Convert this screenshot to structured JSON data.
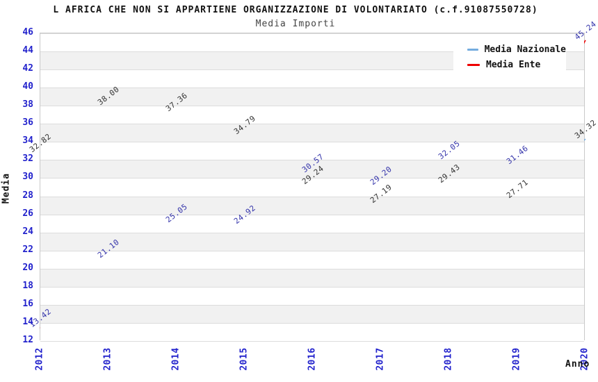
{
  "header": {
    "title": "L AFRICA CHE NON SI APPARTIENE ORGANIZZAZIONE DI VOLONTARIATO (c.f.91087550728)",
    "subtitle": "Media Importi"
  },
  "chart_data": {
    "type": "line",
    "title": "L AFRICA CHE NON SI APPARTIENE ORGANIZZAZIONE DI VOLONTARIATO (c.f.91087550728)",
    "subtitle": "Media Importi",
    "xlabel": "Anno",
    "ylabel": "Media",
    "categories": [
      "2012",
      "2013",
      "2014",
      "2015",
      "2016",
      "2017",
      "2018",
      "2019",
      "2020"
    ],
    "series": [
      {
        "name": "Media Nazionale",
        "color": "#74acdf",
        "label_color": "#333333",
        "values": [
          32.82,
          38.0,
          37.36,
          34.79,
          29.24,
          27.19,
          29.43,
          27.71,
          34.32
        ]
      },
      {
        "name": "Media Ente",
        "color": "#ee0000",
        "label_color": "#3333aa",
        "values": [
          13.42,
          21.1,
          25.05,
          24.92,
          30.57,
          29.2,
          32.05,
          31.46,
          45.24
        ]
      }
    ],
    "ylim": [
      12,
      46
    ],
    "y_ticks": [
      46,
      44,
      42,
      40,
      38,
      36,
      34,
      32,
      30,
      28,
      26,
      24,
      22,
      20,
      18,
      16,
      14,
      12
    ],
    "tick_color": "#2222cc",
    "grid": "alternating-bands",
    "band_fill": "#f1f1f1",
    "grid_color": "#dcdcdc",
    "legend_position": "top-right",
    "data_labels": true,
    "data_label_format": "0.00"
  }
}
